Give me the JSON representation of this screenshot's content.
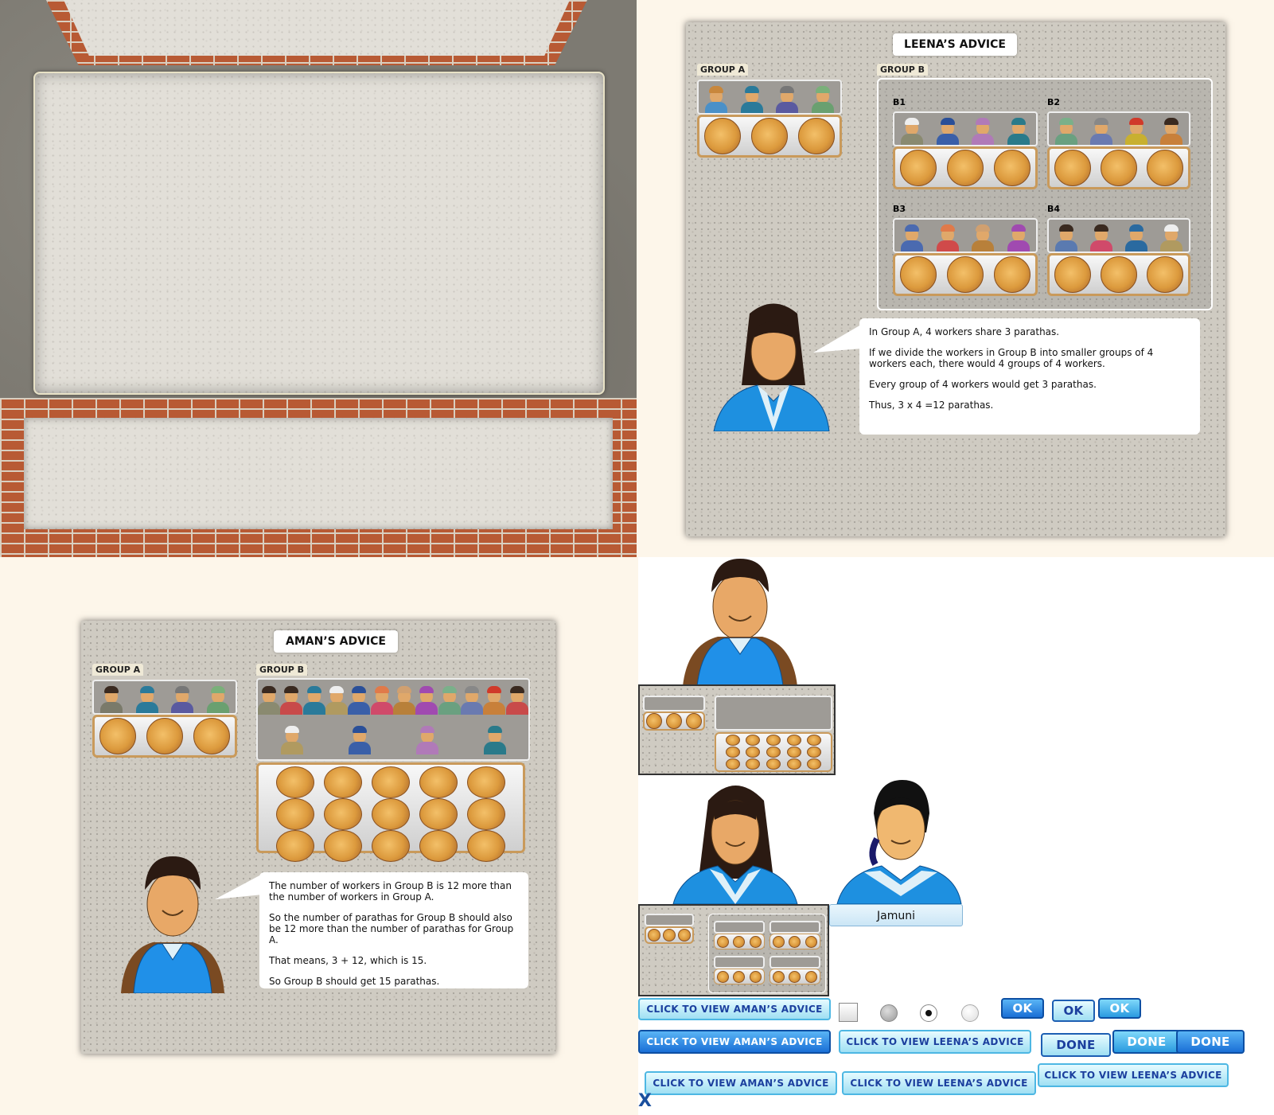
{
  "leena_panel": {
    "title": "LEENA’S ADVICE",
    "group_a_label": "GROUP A",
    "group_b_label": "GROUP B",
    "subgroups": [
      "B1",
      "B2",
      "B3",
      "B4"
    ],
    "speech": [
      "In Group A, 4 workers share 3 parathas.",
      "If we divide the workers in Group B into smaller groups of 4 workers each, there would 4 groups of 4 workers.",
      "Every group of 4 workers would get 3 parathas.",
      "Thus, 3 x 4 =12 parathas."
    ]
  },
  "aman_panel": {
    "title": "AMAN’S ADVICE",
    "group_a_label": "GROUP A",
    "group_b_label": "GROUP B",
    "speech": [
      "The number of workers in Group B is 12 more than the number of workers in Group A.",
      "So the number of parathas for Group B should also be 12 more than the number of parathas for Group A.",
      "That means, 3 + 12, which is 15.",
      "So Group B should get 15 parathas."
    ]
  },
  "characters": {
    "jamuni_label": "Jamuni"
  },
  "buttons": {
    "view_aman_light": "CLICK TO VIEW AMAN’S ADVICE",
    "view_aman_dark": "CLICK TO VIEW AMAN’S ADVICE",
    "view_leena_light": "CLICK TO VIEW LEENA’S ADVICE",
    "view_aman_light2": "CLICK TO VIEW AMAN’S ADVICE",
    "view_leena_light2": "CLICK TO VIEW LEENA’S ADVICE",
    "view_leena_light3": "CLICK TO VIEW LEENA’S ADVICE",
    "ok_1": "OK",
    "ok_2": "OK",
    "ok_3": "OK",
    "done_1": "DONE",
    "done_2": "DONE",
    "done_3": "DONE",
    "close": "X"
  },
  "colors": {
    "accent_blue": "#1a6fd6",
    "light_blue": "#9fdff3",
    "brick": "#b85a34",
    "background": "#fdf6ea"
  }
}
